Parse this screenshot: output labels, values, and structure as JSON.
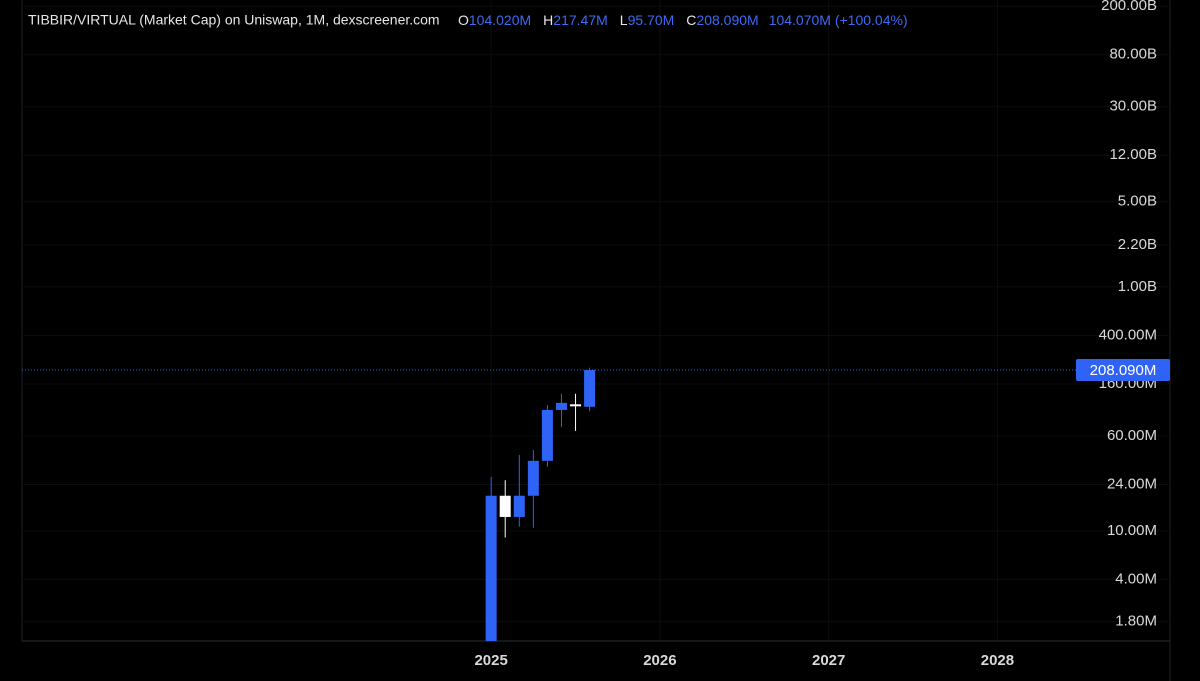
{
  "chart_data": {
    "type": "candlestick",
    "title": "TIBBIR/VIRTUAL (Market Cap) on Uniswap, 1M, dexscreener.com",
    "info": [
      {
        "key": "O",
        "text": "104.020M"
      },
      {
        "key": "H",
        "text": "217.47M"
      },
      {
        "key": "L",
        "text": "95.70M"
      },
      {
        "key": "C",
        "text": "208.090M"
      },
      {
        "text": "104.070M (+100.04%)"
      }
    ],
    "x": [
      2025.0,
      2025.0833,
      2025.1667,
      2025.25,
      2025.3333,
      2025.4167,
      2025.5,
      2025.5833
    ],
    "open": [
      1000000,
      19400000,
      13000000,
      19400000,
      37500000,
      98000000,
      109000000,
      104020000
    ],
    "high": [
      27700000,
      26000000,
      42000000,
      46000000,
      108000000,
      133000000,
      133000000,
      217470000
    ],
    "low": [
      1000000,
      8800000,
      10800000,
      10600000,
      33500000,
      71000000,
      66000000,
      95700000
    ],
    "close": [
      19400000,
      13000000,
      19400000,
      37500000,
      98000000,
      112000000,
      107000000,
      208090000
    ],
    "up_color": "#2f63f5",
    "down_color": "#ffffff",
    "last_price": {
      "value": 208090000,
      "label": "208.090M"
    },
    "log_scale": true,
    "xlim": [
      2022.22,
      2028.43
    ],
    "xticks": [
      2025,
      2026,
      2027,
      2028
    ],
    "ylim": [
      1250000,
      225000000000
    ],
    "yticks": [
      {
        "value": 200000000000,
        "label": "200.00B"
      },
      {
        "value": 80000000000,
        "label": "80.00B"
      },
      {
        "value": 30000000000,
        "label": "30.00B"
      },
      {
        "value": 12000000000,
        "label": "12.00B"
      },
      {
        "value": 5000000000,
        "label": "5.00B"
      },
      {
        "value": 2200000000,
        "label": "2.20B"
      },
      {
        "value": 1000000000,
        "label": "1.00B"
      },
      {
        "value": 400000000,
        "label": "400.00M"
      },
      {
        "value": 160000000,
        "label": "160.00M"
      },
      {
        "value": 60000000,
        "label": "60.00M"
      },
      {
        "value": 24000000,
        "label": "24.00M"
      },
      {
        "value": 10000000,
        "label": "10.00M"
      },
      {
        "value": 4000000,
        "label": "4.00M"
      },
      {
        "value": 1800000,
        "label": "1.80M"
      }
    ]
  }
}
